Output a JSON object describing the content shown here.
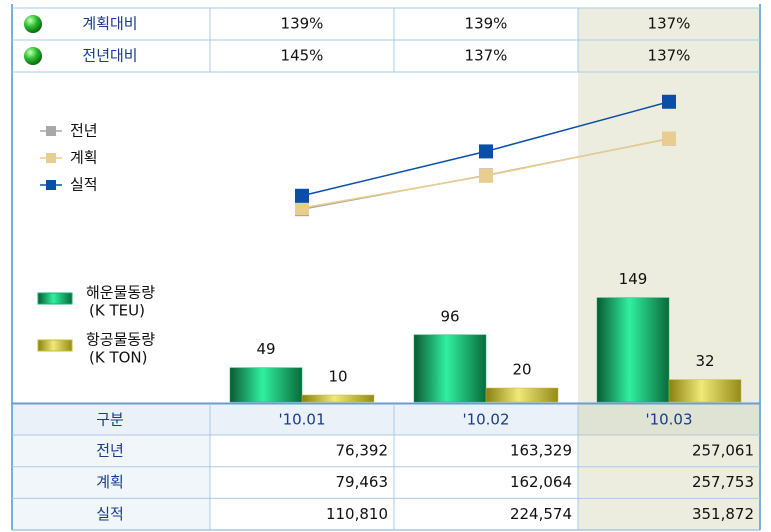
{
  "top_table": {
    "rows": [
      {
        "label": "계획대비",
        "cells": [
          "139%",
          "139%",
          "137%"
        ]
      },
      {
        "label": "전년대비",
        "cells": [
          "145%",
          "137%",
          "137%"
        ]
      }
    ]
  },
  "table": {
    "corner": "구분"
  },
  "chart_data": {
    "type": "combo",
    "categories": [
      "'10.01",
      "'10.02",
      "'10.03"
    ],
    "series": [
      {
        "name": "전년",
        "type": "line",
        "color": "#a8a8a8",
        "values": [
          76392,
          163329,
          257061
        ],
        "value_labels": [
          "76,392",
          "163,329",
          "257,061"
        ]
      },
      {
        "name": "계획",
        "type": "line",
        "color": "#e8cc90",
        "values": [
          79463,
          162064,
          257753
        ],
        "value_labels": [
          "79,463",
          "162,064",
          "257,753"
        ]
      },
      {
        "name": "실적",
        "type": "line",
        "color": "#0a4ea8",
        "values": [
          110810,
          224574,
          351872
        ],
        "value_labels": [
          "110,810",
          "224,574",
          "351,872"
        ]
      },
      {
        "name": "해운물동량",
        "unit": "(K TEU)",
        "type": "bar",
        "color": "#14b070",
        "values": [
          49,
          96,
          149
        ]
      },
      {
        "name": "항공물동량",
        "unit": "(K TON)",
        "type": "bar",
        "color": "#c8bc38",
        "values": [
          10,
          20,
          32
        ]
      }
    ]
  }
}
